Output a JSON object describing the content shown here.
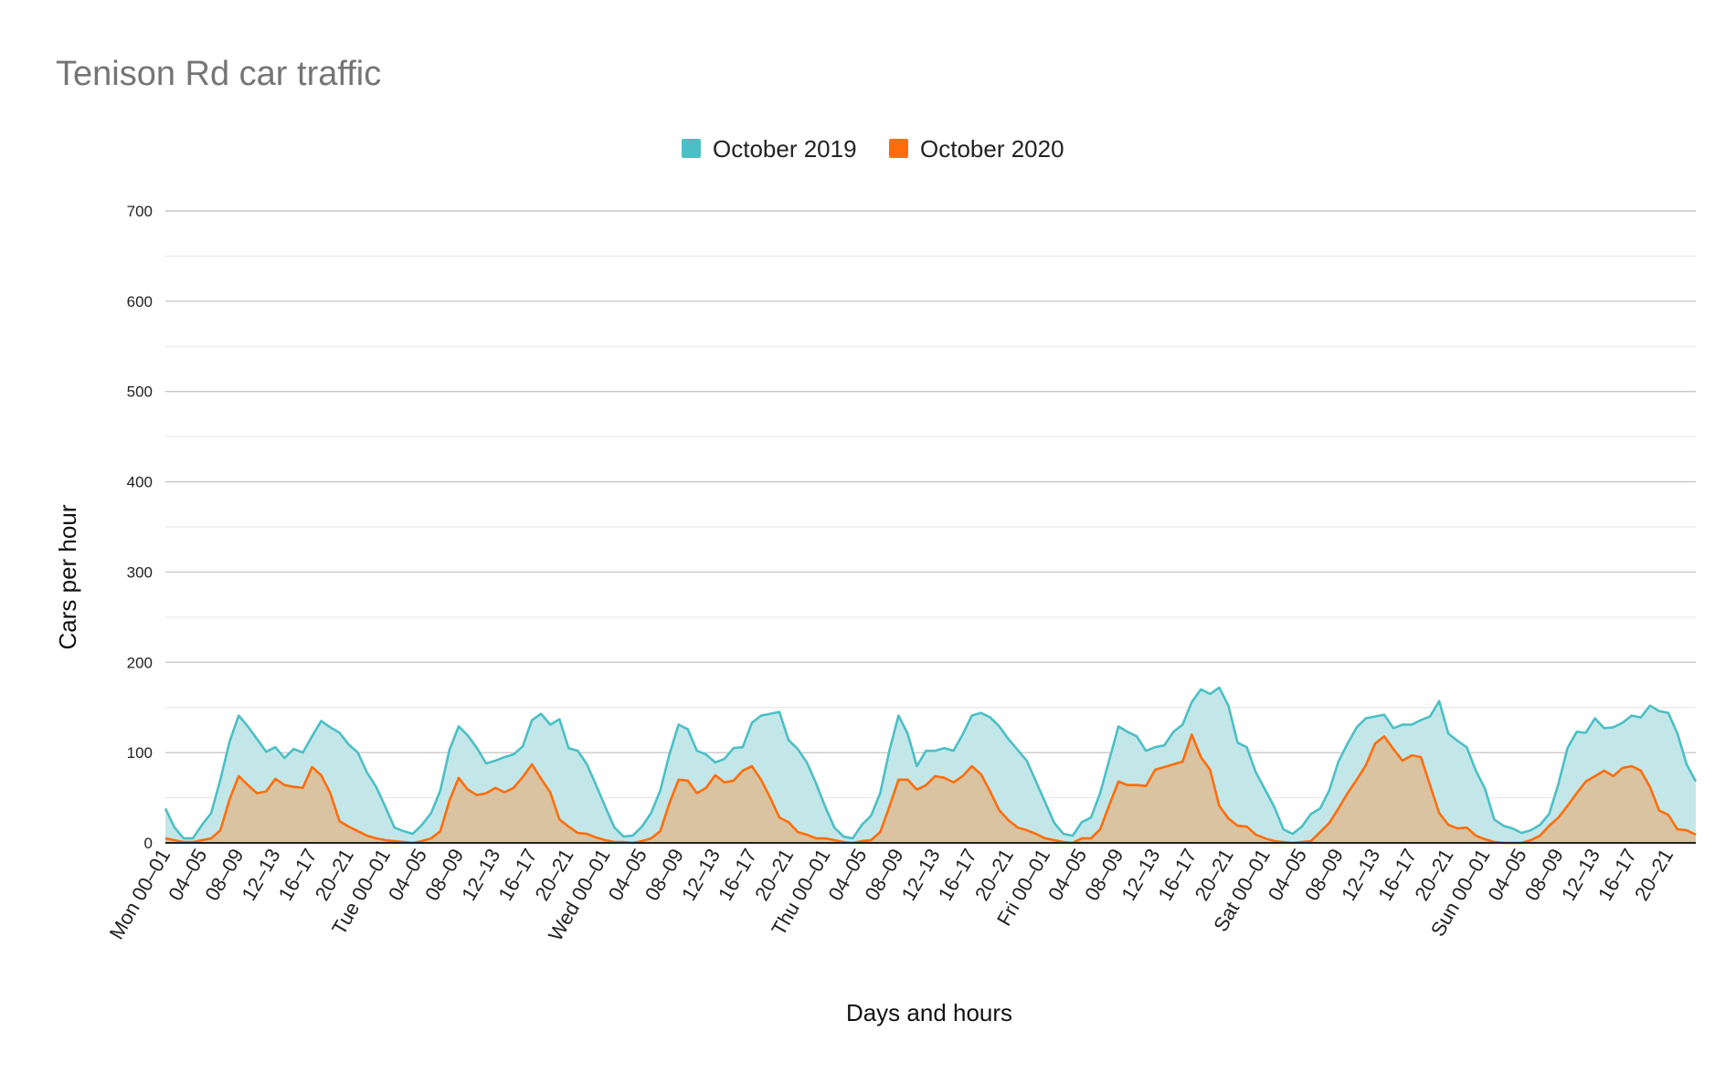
{
  "chart_data": {
    "type": "area",
    "title": "Tenison Rd car traffic",
    "xlabel": "Days and hours",
    "ylabel": "Cars per hour",
    "ylim": [
      0,
      700
    ],
    "yticks": [
      0,
      100,
      200,
      300,
      400,
      500,
      600,
      700
    ],
    "grid": true,
    "legend_position": "top-center",
    "x_hours": 168,
    "xtick_positions": [
      0,
      4,
      8,
      12,
      16,
      20,
      24,
      28,
      32,
      36,
      40,
      44,
      48,
      52,
      56,
      60,
      64,
      68,
      72,
      76,
      80,
      84,
      88,
      92,
      96,
      100,
      104,
      108,
      112,
      116,
      120,
      124,
      128,
      132,
      136,
      140,
      144,
      148,
      152,
      156,
      160,
      164
    ],
    "xtick_labels": [
      "Mon 00–01",
      "04–05",
      "08–09",
      "12–13",
      "16–17",
      "20–21",
      "Tue 00–01",
      "04–05",
      "08–09",
      "12–13",
      "16–17",
      "20–21",
      "Wed 00–01",
      "04–05",
      "08–09",
      "12–13",
      "16–17",
      "20–21",
      "Thu 00–01",
      "04–05",
      "08–09",
      "12–13",
      "16–17",
      "20–21",
      "Fri 00–01",
      "04–05",
      "08–09",
      "12–13",
      "16–17",
      "20–21",
      "Sat 00–01",
      "04–05",
      "08–09",
      "12–13",
      "16–17",
      "20–21",
      "Sun 00–01",
      "04–05",
      "08–09",
      "12–13",
      "16–17",
      "20–21"
    ],
    "series": [
      {
        "name": "October 2019",
        "color": "#4bbfc6",
        "fill": "#c3e7e9",
        "values": [
          38,
          17,
          5,
          5,
          20,
          33,
          70,
          112,
          141,
          129,
          115,
          101,
          106,
          94,
          104,
          100,
          118,
          135,
          128,
          122,
          109,
          100,
          78,
          62,
          40,
          17,
          13,
          10,
          20,
          33,
          58,
          103,
          129,
          119,
          105,
          88,
          91,
          95,
          98,
          107,
          136,
          143,
          131,
          137,
          105,
          102,
          87,
          64,
          40,
          17,
          7,
          8,
          18,
          33,
          58,
          98,
          131,
          126,
          102,
          98,
          89,
          93,
          105,
          106,
          133,
          141,
          143,
          145,
          114,
          104,
          89,
          66,
          40,
          17,
          7,
          5,
          20,
          30,
          55,
          102,
          141,
          121,
          85,
          102,
          102,
          105,
          102,
          120,
          141,
          144,
          139,
          129,
          115,
          103,
          91,
          68,
          45,
          22,
          10,
          8,
          23,
          28,
          55,
          92,
          129,
          123,
          118,
          102,
          106,
          108,
          123,
          131,
          156,
          170,
          165,
          172,
          152,
          111,
          106,
          78,
          59,
          40,
          15,
          10,
          18,
          32,
          38,
          58,
          90,
          110,
          128,
          138,
          140,
          142,
          127,
          131,
          131,
          136,
          140,
          157,
          121,
          113,
          106,
          80,
          60,
          26,
          19,
          16,
          11,
          14,
          20,
          32,
          65,
          105,
          123,
          122,
          138,
          127,
          128,
          133,
          141,
          139,
          152,
          146,
          144,
          121,
          87,
          68
        ]
      },
      {
        "name": "October 2020",
        "color": "#ff6d0a",
        "fill": "#d9c3a1",
        "values": [
          5,
          3,
          1,
          1,
          3,
          5,
          14,
          48,
          74,
          64,
          55,
          57,
          71,
          64,
          62,
          61,
          84,
          75,
          55,
          24,
          18,
          13,
          8,
          5,
          3,
          2,
          1,
          0,
          2,
          5,
          13,
          47,
          72,
          59,
          53,
          55,
          61,
          56,
          61,
          73,
          87,
          71,
          56,
          26,
          18,
          11,
          10,
          6,
          3,
          1,
          1,
          0,
          2,
          5,
          13,
          44,
          70,
          69,
          55,
          61,
          75,
          67,
          69,
          80,
          85,
          70,
          50,
          28,
          23,
          12,
          9,
          5,
          5,
          3,
          1,
          0,
          2,
          3,
          12,
          40,
          70,
          70,
          59,
          64,
          74,
          72,
          67,
          74,
          85,
          76,
          57,
          36,
          25,
          17,
          14,
          10,
          5,
          3,
          1,
          0,
          5,
          5,
          15,
          42,
          68,
          64,
          64,
          63,
          81,
          84,
          87,
          90,
          120,
          95,
          81,
          41,
          27,
          19,
          18,
          9,
          5,
          2,
          1,
          0,
          1,
          2,
          12,
          22,
          38,
          55,
          70,
          86,
          110,
          118,
          104,
          91,
          97,
          95,
          64,
          33,
          20,
          16,
          17,
          8,
          4,
          1,
          0,
          0,
          0,
          3,
          8,
          19,
          28,
          41,
          55,
          68,
          74,
          80,
          74,
          83,
          85,
          80,
          62,
          36,
          31,
          15,
          14,
          9
        ]
      }
    ]
  }
}
